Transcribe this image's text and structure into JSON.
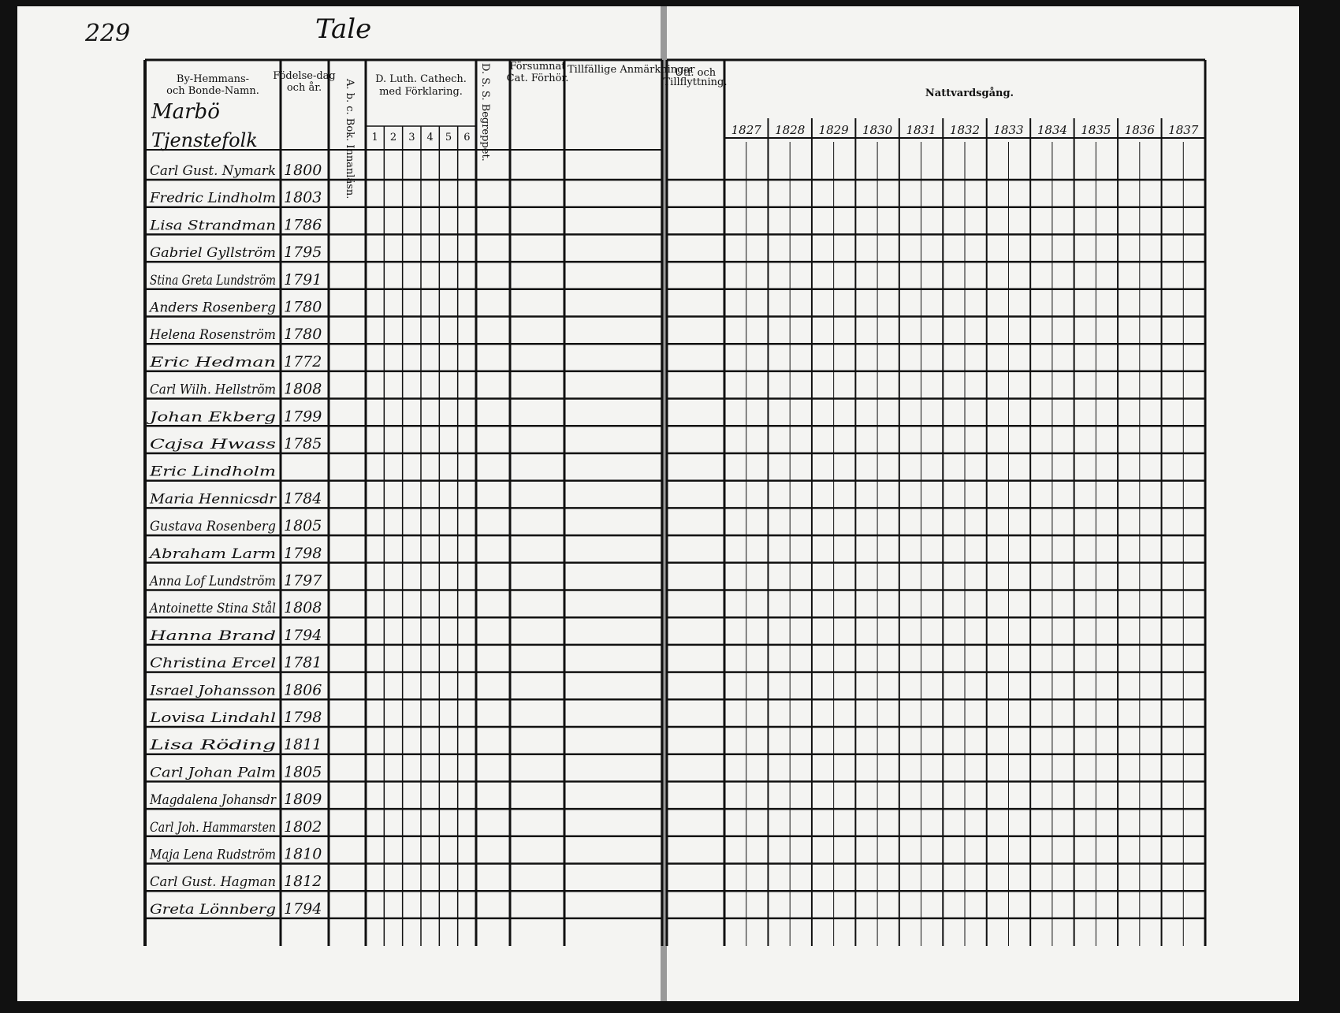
{
  "header": {
    "page_number": "229",
    "village": "Tale",
    "farm": "Marbö",
    "section": "Tjenstefolk"
  },
  "columns": {
    "name": "By-Hemmans- och Bonde-Namn.",
    "born": "Födelse-dag och år.",
    "abc": "A. b. c. Bok. Innanläsn.",
    "cathech": "D. Luth. Cathech. med Förklaring.",
    "cathech_parts": [
      "1",
      "2",
      "3",
      "4",
      "5",
      "6"
    ],
    "dss": "D. S. S. Begreppet.",
    "missed": "Försumnat Cat. Förhör.",
    "remarks": "Tillfällige Anmärkningar",
    "moving": "Utf. och Tillflyttning.",
    "communion": "Nattvardsgång.",
    "years": [
      "1827",
      "1828",
      "1829",
      "1830",
      "1831",
      "1832",
      "1833",
      "1834",
      "1835",
      "1836",
      "1837"
    ]
  },
  "rows": [
    {
      "name": "Carl Gust. Nymark",
      "born": "1800"
    },
    {
      "name": "Fredric Lindholm",
      "born": "1803"
    },
    {
      "name": "Lisa Strandman",
      "born": "1786"
    },
    {
      "name": "Gabriel Gyllström",
      "born": "1795"
    },
    {
      "name": "Stina Greta Lundström",
      "born": "1791"
    },
    {
      "name": "Anders Rosenberg",
      "born": "1780"
    },
    {
      "name": "Helena Rosenström",
      "born": "1780"
    },
    {
      "name": "Eric Hedman",
      "born": "1772"
    },
    {
      "name": "Carl Wilh. Hellström",
      "born": "1808"
    },
    {
      "name": "Johan Ekberg",
      "born": "1799"
    },
    {
      "name": "Cajsa Hwass",
      "born": "1785"
    },
    {
      "name": "Eric Lindholm"
    },
    {
      "name": "Maria Hennicsdr",
      "born": "1784"
    },
    {
      "name": "Gustava Rosenberg",
      "born": "1805"
    },
    {
      "name": "Abraham Larm",
      "born": "1798"
    },
    {
      "name": "Anna Lof Lundström",
      "born": "1797"
    },
    {
      "name": "Antoinette Stina Stål",
      "born": "1808"
    },
    {
      "name": "Hanna Brand",
      "born": "1794"
    },
    {
      "name": "Christina Ercel",
      "born": "1781"
    },
    {
      "name": "Israel Johansson",
      "born": "1806"
    },
    {
      "name": "Lovisa Lindahl",
      "born": "1798"
    },
    {
      "name": "Lisa Röding",
      "born": "1811"
    },
    {
      "name": "Carl Johan Palm",
      "born": "1805"
    },
    {
      "name": "Magdalena Johansdr",
      "born": "1809"
    },
    {
      "name": "Carl Joh. Hammarsten",
      "born": "1802"
    },
    {
      "name": "Maja Lena Rudström",
      "born": "1810"
    },
    {
      "name": "Carl Gust. Hagman",
      "born": "1812"
    },
    {
      "name": "Greta Lönnberg",
      "born": "1794"
    }
  ]
}
